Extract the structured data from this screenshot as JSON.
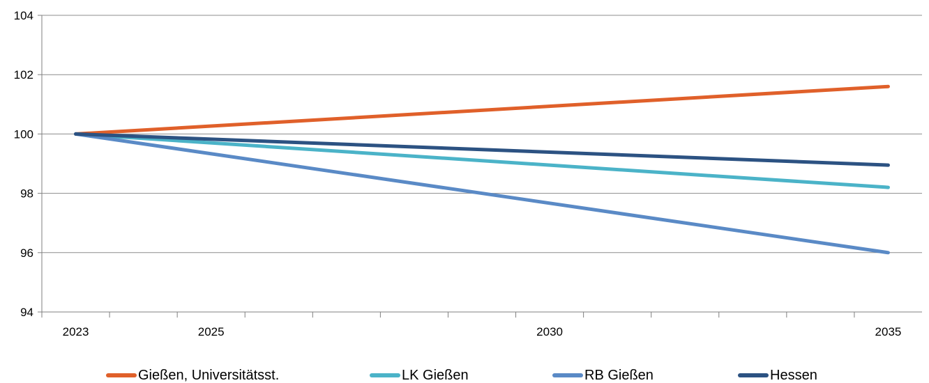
{
  "chart_data": {
    "type": "line",
    "title": "",
    "xlabel": "",
    "ylabel": "",
    "x": [
      2023,
      2035
    ],
    "xlim": [
      2022.5,
      2035.5
    ],
    "ylim": [
      94,
      104
    ],
    "y_ticks": [
      "94",
      "96",
      "98",
      "100",
      "102",
      "104"
    ],
    "x_tick_labels": [
      {
        "year": 2023,
        "label": "2023"
      },
      {
        "year": 2025,
        "label": "2025"
      },
      {
        "year": 2030,
        "label": "2030"
      },
      {
        "year": 2035,
        "label": "2035"
      }
    ],
    "x_minor_ticks": [
      2023,
      2024,
      2025,
      2026,
      2027,
      2028,
      2029,
      2030,
      2031,
      2032,
      2033,
      2034,
      2035
    ],
    "grid": "horizontal",
    "legend_position": "bottom",
    "series": [
      {
        "name": "Gießen, Universitätsst.",
        "color": "#e0602a",
        "values": [
          100,
          101.6
        ]
      },
      {
        "name": "LK Gießen",
        "color": "#4bb3c8",
        "values": [
          100,
          98.2
        ]
      },
      {
        "name": "RB Gießen",
        "color": "#5a8ac6",
        "values": [
          100,
          96.0
        ]
      },
      {
        "name": "Hessen",
        "color": "#2c5282",
        "values": [
          100,
          98.95
        ]
      }
    ]
  }
}
